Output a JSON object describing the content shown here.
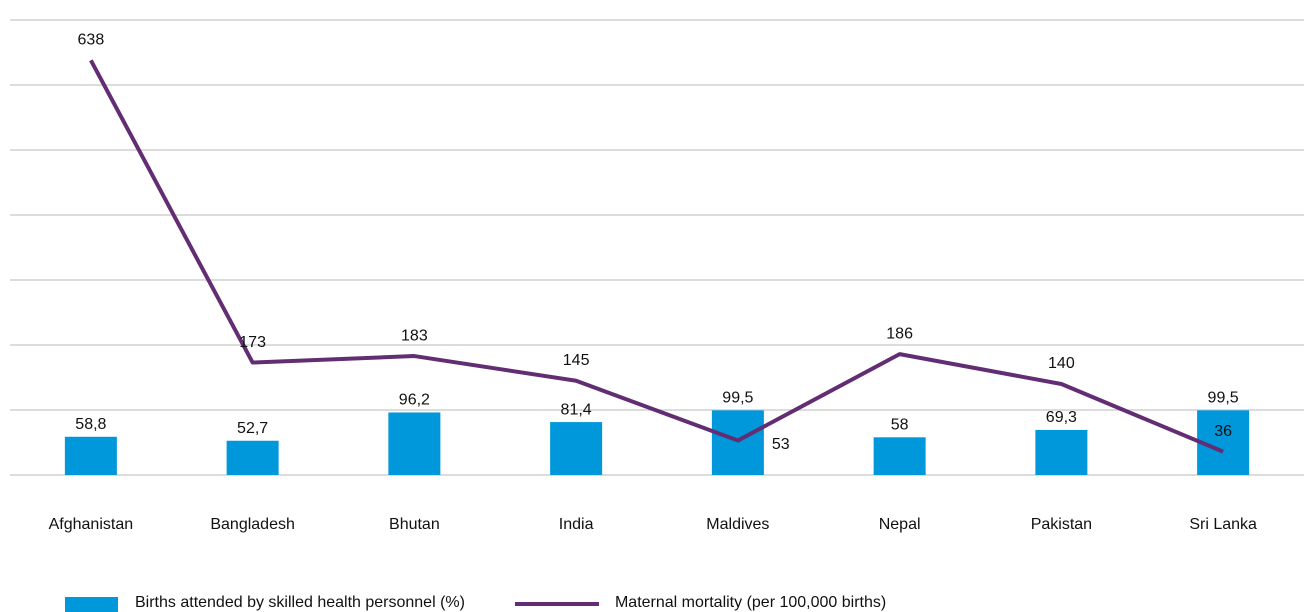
{
  "chart_data": {
    "type": "combo",
    "categories": [
      "Afghanistan",
      "Bangladesh",
      "Bhutan",
      "India",
      "Maldives",
      "Nepal",
      "Pakistan",
      "Sri Lanka"
    ],
    "series": [
      {
        "name": "Births attended by skilled health personnel (%)",
        "type": "bar",
        "color": "#0098db",
        "values": [
          58.8,
          52.7,
          96.2,
          81.4,
          99.5,
          58,
          69.3,
          99.5
        ],
        "value_labels": [
          "58,8",
          "52,7",
          "96,2",
          "81,4",
          "99,5",
          "58",
          "69,3",
          "99,5"
        ]
      },
      {
        "name": "Maternal mortality (per 100,000 births)",
        "type": "line",
        "color": "#632d73",
        "values": [
          638,
          173,
          183,
          145,
          53,
          186,
          140,
          36
        ]
      }
    ],
    "ylim": [
      0,
      700
    ],
    "yticks": [
      0,
      100,
      200,
      300,
      400,
      500,
      600,
      700
    ],
    "grid": true
  }
}
